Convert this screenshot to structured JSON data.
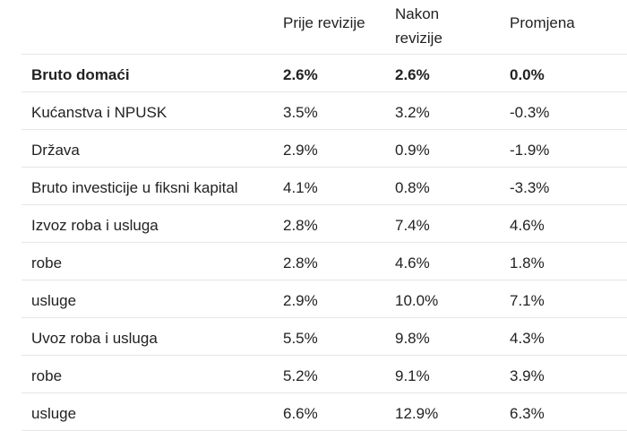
{
  "table": {
    "headers": [
      "",
      "Prije revizije",
      "Nakon revizije",
      "Promjena"
    ],
    "rows": [
      {
        "label": "Bruto domaći",
        "before": "2.6%",
        "after": "2.6%",
        "change": "0.0%"
      },
      {
        "label": "Kućanstva i NPUSK",
        "before": "3.5%",
        "after": "3.2%",
        "change": "-0.3%"
      },
      {
        "label": "Država",
        "before": "2.9%",
        "after": "0.9%",
        "change": "-1.9%"
      },
      {
        "label": "Bruto investicije u fiksni kapital",
        "before": "4.1%",
        "after": "0.8%",
        "change": "-3.3%"
      },
      {
        "label": "Izvoz roba i usluga",
        "before": "2.8%",
        "after": "7.4%",
        "change": "4.6%"
      },
      {
        "label": "robe",
        "before": "2.8%",
        "after": "4.6%",
        "change": "1.8%"
      },
      {
        "label": "usluge",
        "before": "2.9%",
        "after": "10.0%",
        "change": "7.1%"
      },
      {
        "label": "Uvoz roba i usluga",
        "before": "5.5%",
        "after": "9.8%",
        "change": "4.3%"
      },
      {
        "label": "robe",
        "before": "5.2%",
        "after": "9.1%",
        "change": "3.9%"
      },
      {
        "label": "usluge",
        "before": "6.6%",
        "after": "12.9%",
        "change": "6.3%"
      }
    ]
  }
}
